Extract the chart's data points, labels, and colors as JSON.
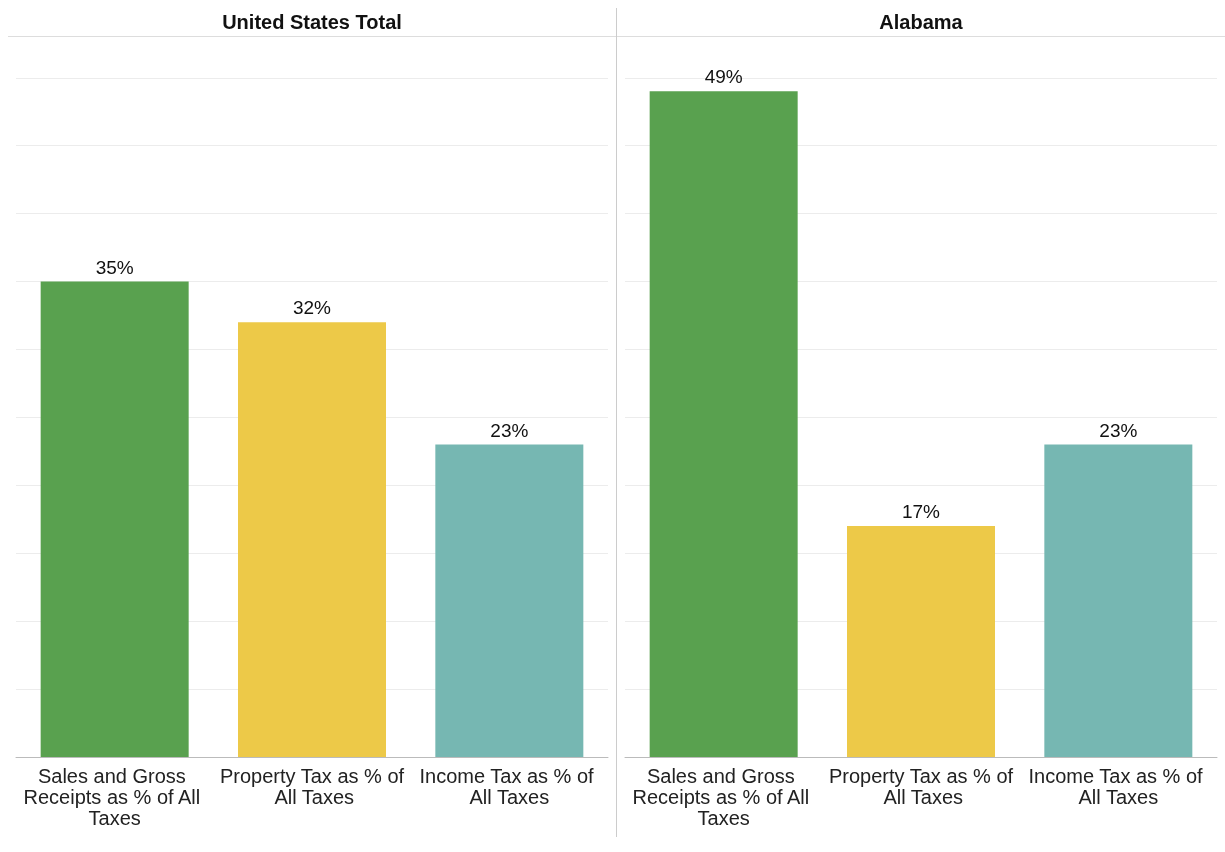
{
  "chart_data": [
    {
      "type": "bar",
      "title": "United States Total",
      "categories": [
        "Sales and Gross Receipts as % of All Taxes",
        "Property Tax as % of All Taxes",
        "Income Tax as % of All Taxes"
      ],
      "values": [
        35,
        32,
        23
      ],
      "colors": [
        "#59a14f",
        "#edc948",
        "#76b7b2"
      ],
      "value_labels": [
        "35%",
        "32%",
        "23%"
      ],
      "ylim": [
        0,
        53
      ],
      "yticks": [
        {
          "value": 0,
          "label": null
        },
        {
          "value": 5,
          "label": null
        },
        {
          "value": 10,
          "label": null
        },
        {
          "value": 15,
          "label": null
        },
        {
          "value": 20,
          "label": null
        },
        {
          "value": 25,
          "label": null
        },
        {
          "value": 30,
          "label": null
        },
        {
          "value": 35,
          "label": null
        },
        {
          "value": 40,
          "label": null
        },
        {
          "value": 45,
          "label": null
        },
        {
          "value": 50,
          "label": null
        }
      ],
      "grid": "y",
      "tick_labels": "x"
    },
    {
      "type": "bar",
      "title": "Alabama",
      "categories": [
        "Sales and Gross Receipts as % of All Taxes",
        "Property Tax as % of All Taxes",
        "Income Tax as % of All Taxes"
      ],
      "values": [
        49,
        17,
        23
      ],
      "colors": [
        "#59a14f",
        "#edc948",
        "#76b7b2"
      ],
      "value_labels": [
        "49%",
        "17%",
        "23%"
      ],
      "ylim": [
        0,
        53
      ],
      "yticks": [
        {
          "value": 0,
          "label": null
        },
        {
          "value": 5,
          "label": null
        },
        {
          "value": 10,
          "label": null
        },
        {
          "value": 15,
          "label": null
        },
        {
          "value": 20,
          "label": null
        },
        {
          "value": 25,
          "label": null
        },
        {
          "value": 30,
          "label": null
        },
        {
          "value": 35,
          "label": null
        },
        {
          "value": 40,
          "label": null
        },
        {
          "value": 45,
          "label": null
        },
        {
          "value": 50,
          "label": null
        }
      ],
      "grid": "y",
      "tick_labels": "x"
    }
  ]
}
